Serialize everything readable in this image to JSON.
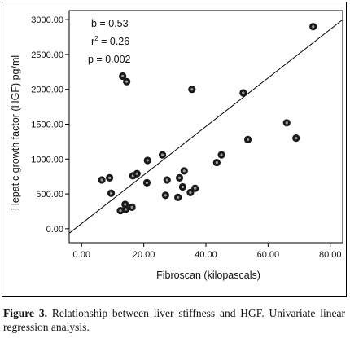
{
  "chart_data": {
    "type": "scatter",
    "xlabel": "Fibroscan (kilopascals)",
    "ylabel": "Hepatic growth factor (HGF) pg/ml",
    "x_ticks": [
      "0.00",
      "20.00",
      "40.00",
      "60.00",
      "80.00"
    ],
    "y_ticks": [
      "0.00",
      "500.00",
      "1000.00",
      "1500.00",
      "2000.00",
      "2500.00",
      "3000.00"
    ],
    "xlim": [
      -4,
      84
    ],
    "ylim": [
      -200,
      3130
    ],
    "stats": {
      "b": "b = 0.53",
      "r2_prefix": "r",
      "r2_sup": "2",
      "r2_suffix": " = 0.26",
      "p": "p = 0.002"
    },
    "fit_line": {
      "x": [
        -4,
        84
      ],
      "y": [
        -65,
        3000
      ]
    },
    "points": [
      {
        "x": 6.5,
        "y": 700
      },
      {
        "x": 9.0,
        "y": 730
      },
      {
        "x": 9.5,
        "y": 510
      },
      {
        "x": 12.5,
        "y": 260
      },
      {
        "x": 13.2,
        "y": 2190
      },
      {
        "x": 14.0,
        "y": 350
      },
      {
        "x": 14.2,
        "y": 280
      },
      {
        "x": 14.5,
        "y": 2110
      },
      {
        "x": 16.2,
        "y": 310
      },
      {
        "x": 16.5,
        "y": 760
      },
      {
        "x": 17.8,
        "y": 790
      },
      {
        "x": 21.0,
        "y": 660
      },
      {
        "x": 21.2,
        "y": 980
      },
      {
        "x": 26.0,
        "y": 1060
      },
      {
        "x": 27.0,
        "y": 480
      },
      {
        "x": 27.5,
        "y": 700
      },
      {
        "x": 31.0,
        "y": 450
      },
      {
        "x": 31.5,
        "y": 730
      },
      {
        "x": 32.5,
        "y": 600
      },
      {
        "x": 33.0,
        "y": 830
      },
      {
        "x": 35.0,
        "y": 520
      },
      {
        "x": 35.5,
        "y": 2000
      },
      {
        "x": 36.5,
        "y": 580
      },
      {
        "x": 43.5,
        "y": 950
      },
      {
        "x": 45.0,
        "y": 1060
      },
      {
        "x": 52.0,
        "y": 1950
      },
      {
        "x": 53.5,
        "y": 1280
      },
      {
        "x": 66.0,
        "y": 1520
      },
      {
        "x": 69.0,
        "y": 1300
      },
      {
        "x": 74.5,
        "y": 2900
      }
    ]
  },
  "caption": {
    "label": "Figure 3.",
    "text": " Relationship between liver stiffness and HGF. Univariate linear regression analysis."
  }
}
